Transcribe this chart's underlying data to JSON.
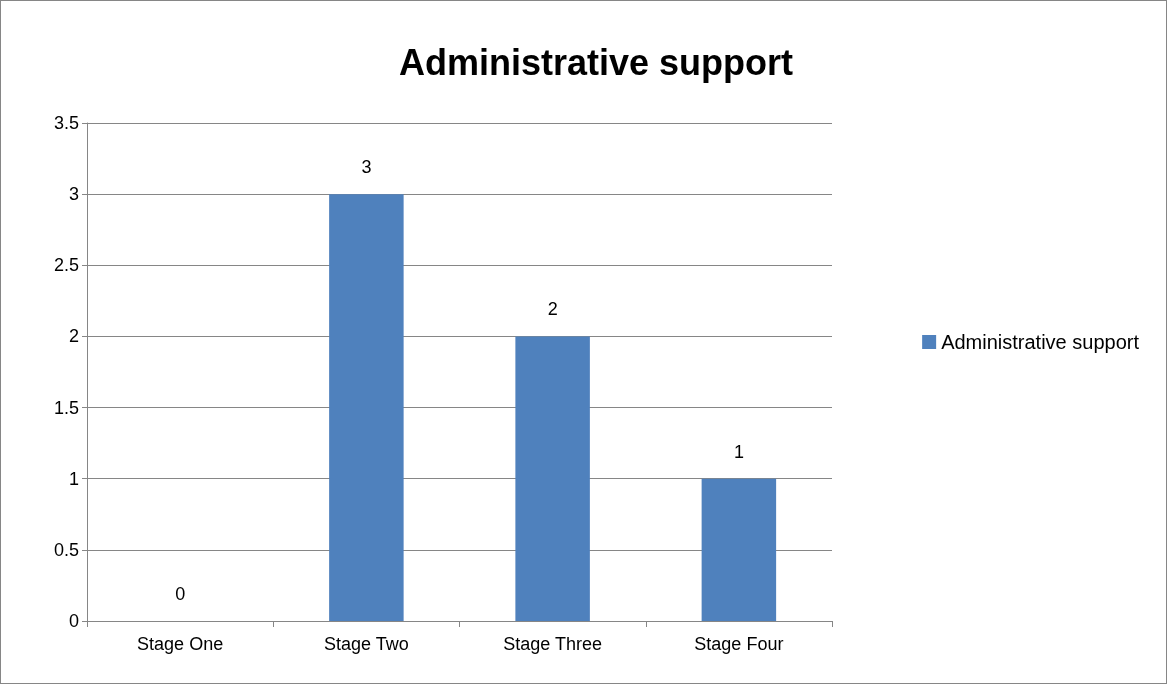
{
  "chart_data": {
    "type": "bar",
    "title": "Administrative support",
    "categories": [
      "Stage One",
      "Stage Two",
      "Stage Three",
      "Stage Four"
    ],
    "series": [
      {
        "name": "Administrative support",
        "color": "#4f81bd",
        "values": [
          0,
          3,
          2,
          1
        ]
      }
    ],
    "ylim": [
      0,
      3.5
    ],
    "yticks": [
      0,
      0.5,
      1,
      1.5,
      2,
      2.5,
      3,
      3.5
    ],
    "grid": "y",
    "legend": "right",
    "data_labels": true
  }
}
